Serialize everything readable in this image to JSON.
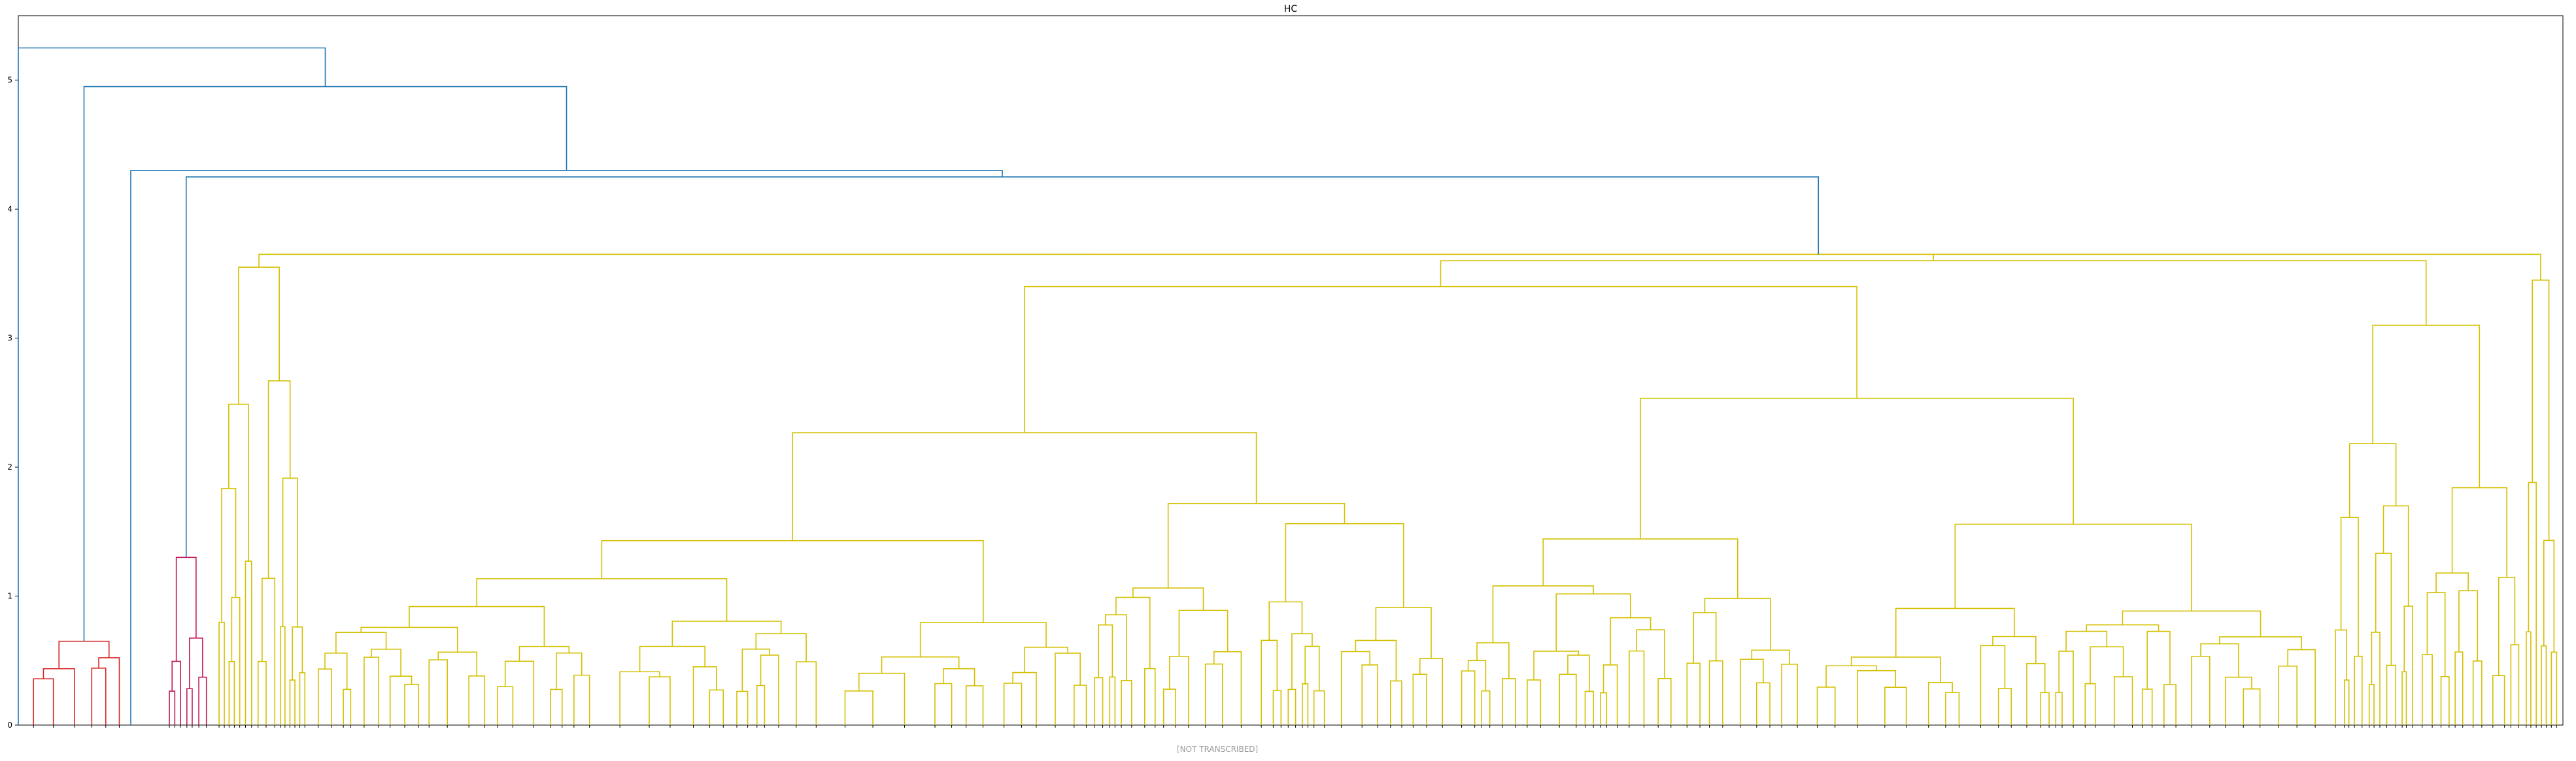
{
  "chart_data": {
    "type": "dendrogram",
    "title": "HC",
    "xlabel": "",
    "ylabel": "",
    "ylim": [
      0,
      5.5
    ],
    "yticks": [
      0,
      1,
      2,
      3,
      4,
      5
    ],
    "grid": false,
    "colors": {
      "above_threshold": "#1f77b4",
      "cluster_red": "#d62728",
      "cluster_magenta": "#c2185b",
      "cluster_yellow": "#d4c000"
    },
    "merges": [
      {
        "height": 5.25,
        "color": "above_threshold"
      },
      {
        "height": 4.95,
        "color": "above_threshold"
      },
      {
        "height": 4.3,
        "color": "above_threshold"
      },
      {
        "height": 4.25,
        "color": "above_threshold"
      },
      {
        "height": 3.65,
        "color": "above_threshold"
      },
      {
        "height": 3.6,
        "color": "cluster_yellow"
      },
      {
        "height": 3.4,
        "color": "cluster_yellow"
      },
      {
        "height": 3.15,
        "color": "cluster_yellow"
      },
      {
        "height": 2.6,
        "color": "cluster_yellow"
      },
      {
        "height": 2.0,
        "color": "cluster_yellow"
      },
      {
        "height": 1.3,
        "color": "cluster_magenta"
      },
      {
        "height": 0.65,
        "color": "cluster_red"
      }
    ],
    "leaf_labels_note": "[NOT TRANSCRIBED]"
  }
}
